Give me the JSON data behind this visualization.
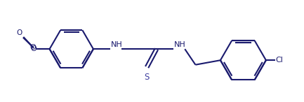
{
  "line_color": "#1a1a6e",
  "text_color": "#1a1a6e",
  "sulfur_color": "#4040a0",
  "bg_color": "#ffffff",
  "figsize": [
    4.33,
    1.46
  ],
  "dpi": 100,
  "bond_lw": 1.5,
  "font_size": 8.0,
  "xlim": [
    0,
    10
  ],
  "ylim": [
    0,
    3.37
  ]
}
